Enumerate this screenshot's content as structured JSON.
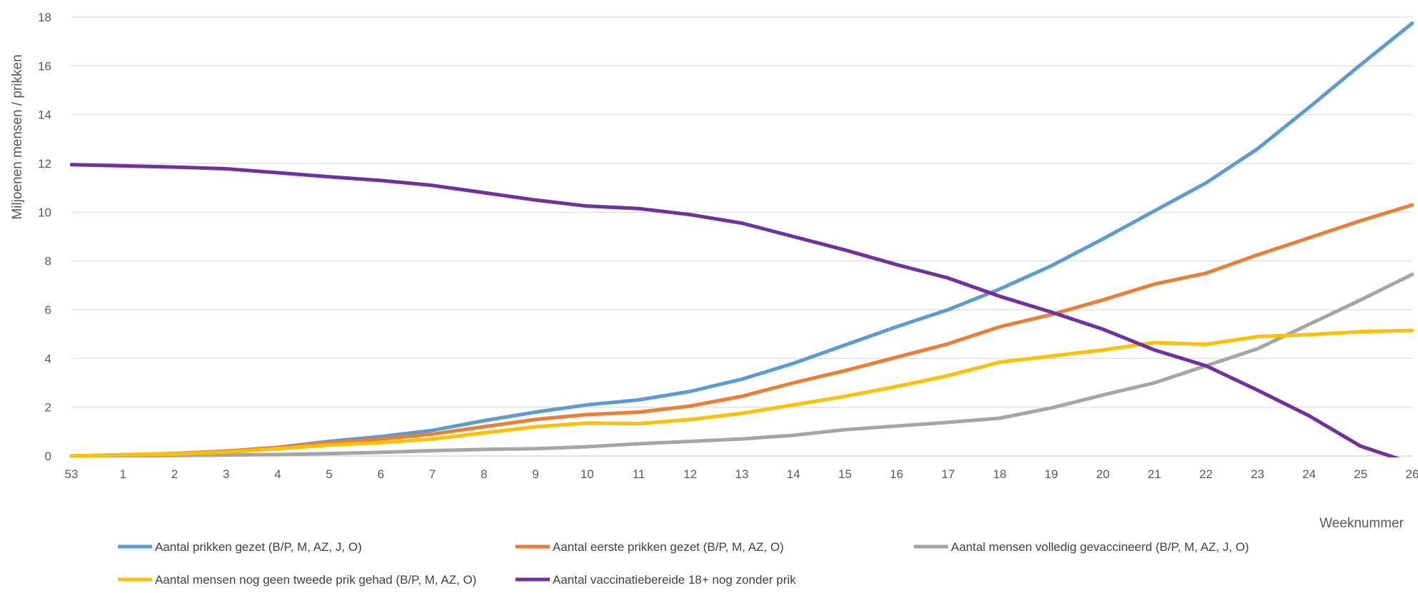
{
  "chart_data": {
    "type": "line",
    "title": "",
    "xlabel": "Weeknummer",
    "ylabel": "Miljoenen mensen / prikken",
    "ylim": [
      0,
      18
    ],
    "yticks": [
      0,
      2,
      4,
      6,
      8,
      10,
      12,
      14,
      16,
      18
    ],
    "grid": true,
    "legend_position": "bottom",
    "categories": [
      "53",
      "1",
      "2",
      "3",
      "4",
      "5",
      "6",
      "7",
      "8",
      "9",
      "10",
      "11",
      "12",
      "13",
      "14",
      "15",
      "16",
      "17",
      "18",
      "19",
      "20",
      "21",
      "22",
      "23",
      "24",
      "25",
      "26"
    ],
    "series": [
      {
        "name": "Aantal prikken gezet (B/P, M, AZ, J, O)",
        "color": "#5B9BD5",
        "values": [
          0,
          0.05,
          0.1,
          0.2,
          0.35,
          0.6,
          0.8,
          1.05,
          1.45,
          1.8,
          2.1,
          2.3,
          2.65,
          3.15,
          3.8,
          4.55,
          5.3,
          6.0,
          6.85,
          7.8,
          8.9,
          10.05,
          11.2,
          12.6,
          14.3,
          16.05,
          17.75
        ]
      },
      {
        "name": "Aantal eerste prikken gezet (B/P, M, AZ, O)",
        "color": "#ED7D31",
        "values": [
          0,
          0.05,
          0.1,
          0.2,
          0.35,
          0.55,
          0.7,
          0.9,
          1.2,
          1.5,
          1.7,
          1.8,
          2.05,
          2.45,
          3.0,
          3.5,
          4.05,
          4.6,
          5.3,
          5.8,
          6.4,
          7.05,
          7.5,
          8.25,
          8.95,
          9.65,
          10.3
        ]
      },
      {
        "name": "Aantal mensen volledig gevaccineerd (B/P, M, AZ, J, O)",
        "color": "#A5A5A5",
        "values": [
          0,
          0,
          0.02,
          0.04,
          0.06,
          0.1,
          0.15,
          0.22,
          0.27,
          0.3,
          0.38,
          0.5,
          0.6,
          0.7,
          0.85,
          1.08,
          1.23,
          1.38,
          1.55,
          1.97,
          2.5,
          3.0,
          3.7,
          4.4,
          5.4,
          6.4,
          7.45
        ]
      },
      {
        "name": "Aantal mensen nog geen tweede prik gehad (B/P, M, AZ, O)",
        "color": "#FFC000",
        "values": [
          0,
          0.05,
          0.08,
          0.16,
          0.3,
          0.45,
          0.55,
          0.7,
          0.95,
          1.2,
          1.35,
          1.33,
          1.5,
          1.75,
          2.1,
          2.45,
          2.85,
          3.3,
          3.85,
          4.1,
          4.35,
          4.65,
          4.58,
          4.9,
          4.98,
          5.1,
          5.15
        ]
      },
      {
        "name": "Aantal vaccinatiebereide 18+ nog zonder prik",
        "color": "#7030A0",
        "values": [
          11.95,
          11.9,
          11.85,
          11.78,
          11.62,
          11.45,
          11.3,
          11.1,
          10.8,
          10.5,
          10.25,
          10.15,
          9.9,
          9.55,
          9.0,
          8.45,
          7.85,
          7.3,
          6.55,
          5.9,
          5.2,
          4.35,
          3.7,
          2.7,
          1.65,
          0.4,
          -0.3
        ]
      }
    ]
  }
}
